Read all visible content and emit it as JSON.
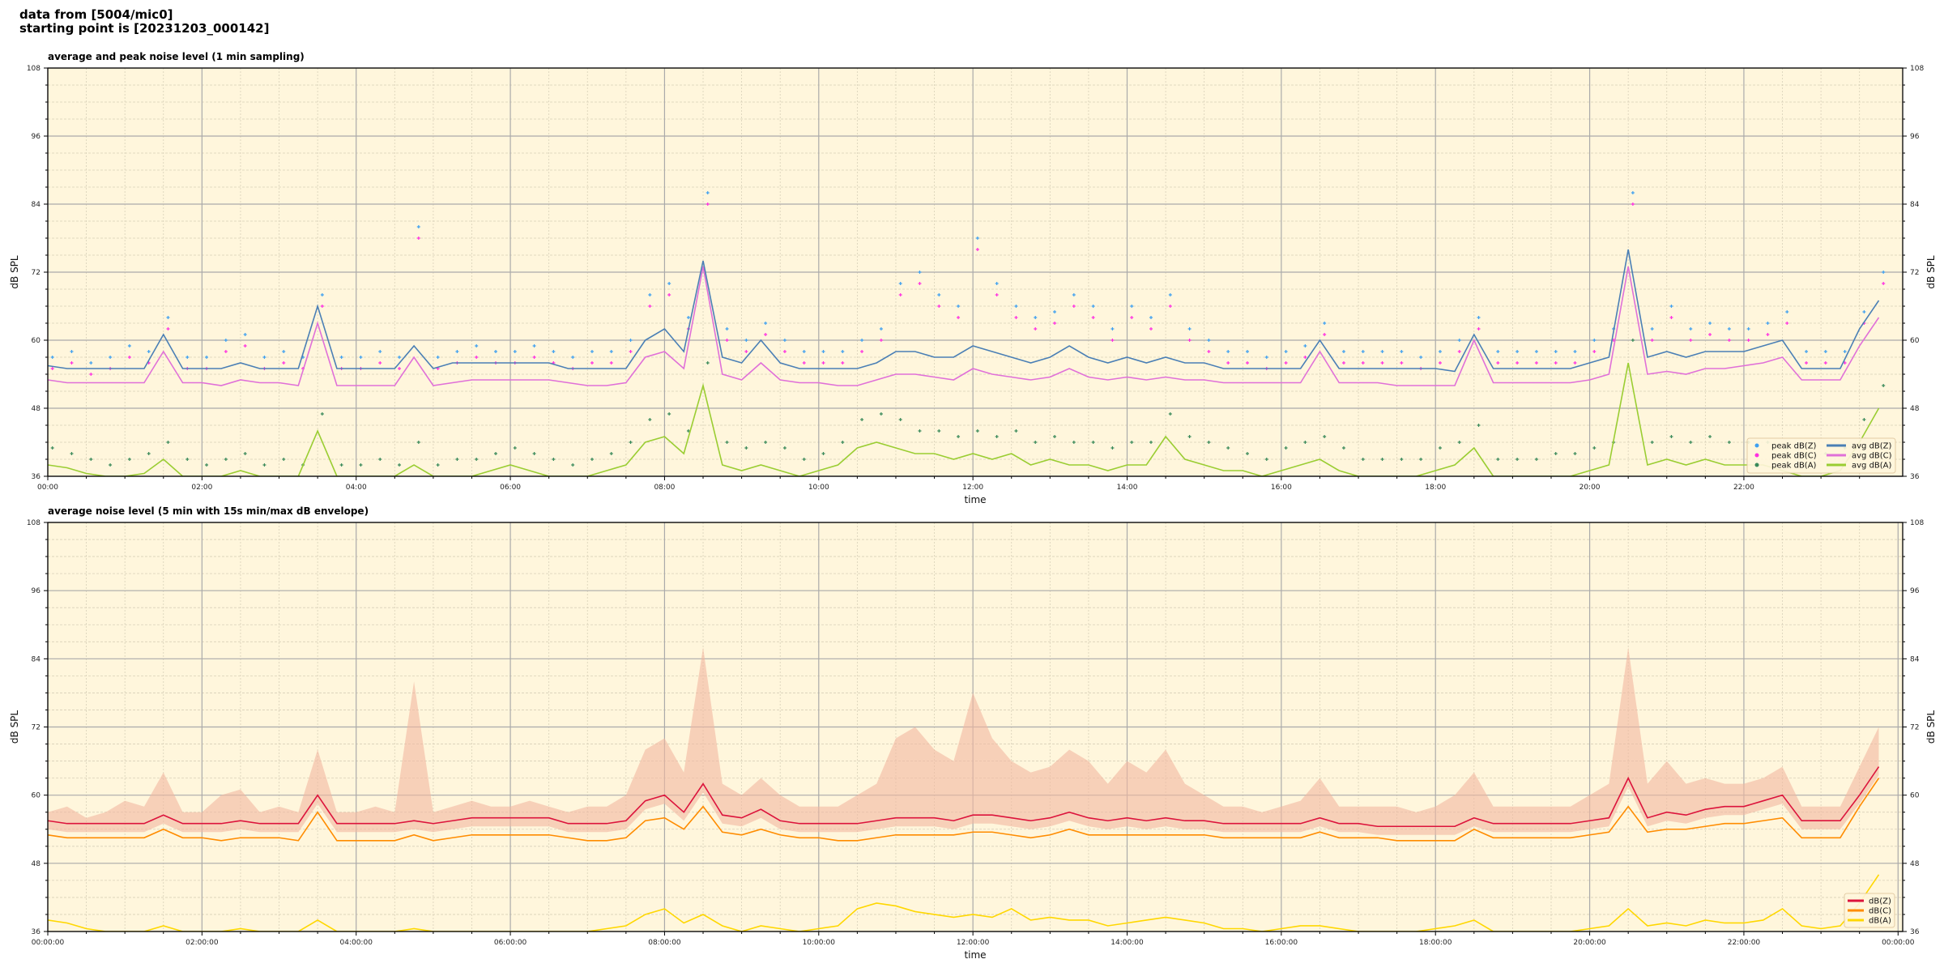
{
  "figure": {
    "suptitle_line1": "data from [5004/mic0]",
    "suptitle_line2": "starting point is [20231203_000142]"
  },
  "chart_data": [
    {
      "type": "line",
      "title": "average and peak noise level (1 min sampling)",
      "xlabel": "time",
      "ylabel": "dB SPL",
      "ylim": [
        36,
        108
      ],
      "yticks": [
        "36",
        "48",
        "60",
        "72",
        "84",
        "96",
        "108"
      ],
      "xticks": [
        "00:00",
        "02:00",
        "04:00",
        "06:00",
        "08:00",
        "10:00",
        "12:00",
        "14:00",
        "16:00",
        "18:00",
        "20:00",
        "22:00"
      ],
      "grid": true,
      "background": "#fff6dc",
      "legend_position": "lower-right",
      "x": [
        "00:00",
        "00:15",
        "00:30",
        "00:45",
        "01:00",
        "01:15",
        "01:30",
        "01:45",
        "02:00",
        "02:15",
        "02:30",
        "02:45",
        "03:00",
        "03:15",
        "03:30",
        "03:45",
        "04:00",
        "04:15",
        "04:30",
        "04:45",
        "05:00",
        "05:15",
        "05:30",
        "05:45",
        "06:00",
        "06:15",
        "06:30",
        "06:45",
        "07:00",
        "07:15",
        "07:30",
        "07:45",
        "08:00",
        "08:15",
        "08:30",
        "08:45",
        "09:00",
        "09:15",
        "09:30",
        "09:45",
        "10:00",
        "10:15",
        "10:30",
        "10:45",
        "11:00",
        "11:15",
        "11:30",
        "11:45",
        "12:00",
        "12:15",
        "12:30",
        "12:45",
        "13:00",
        "13:15",
        "13:30",
        "13:45",
        "14:00",
        "14:15",
        "14:30",
        "14:45",
        "15:00",
        "15:15",
        "15:30",
        "15:45",
        "16:00",
        "16:15",
        "16:30",
        "16:45",
        "17:00",
        "17:15",
        "17:30",
        "17:45",
        "18:00",
        "18:15",
        "18:30",
        "18:45",
        "19:00",
        "19:15",
        "19:30",
        "19:45",
        "20:00",
        "20:15",
        "20:30",
        "20:45",
        "21:00",
        "21:15",
        "21:30",
        "21:45",
        "22:00",
        "22:15",
        "22:30",
        "22:45",
        "23:00",
        "23:15",
        "23:30",
        "23:45"
      ],
      "scatter_series": [
        {
          "name": "peak dB(Z)",
          "color": "#3fa0f0",
          "values": [
            57,
            58,
            56,
            57,
            59,
            58,
            64,
            57,
            57,
            60,
            61,
            57,
            58,
            57,
            68,
            57,
            57,
            58,
            57,
            80,
            57,
            58,
            59,
            58,
            58,
            59,
            58,
            57,
            58,
            58,
            60,
            68,
            70,
            64,
            86,
            62,
            60,
            63,
            60,
            58,
            58,
            58,
            60,
            62,
            70,
            72,
            68,
            66,
            78,
            70,
            66,
            64,
            65,
            68,
            66,
            62,
            66,
            64,
            68,
            62,
            60,
            58,
            58,
            57,
            58,
            59,
            63,
            58,
            58,
            58,
            58,
            57,
            58,
            60,
            64,
            58,
            58,
            58,
            58,
            58,
            60,
            62,
            86,
            62,
            66,
            62,
            63,
            62,
            62,
            63,
            65,
            58,
            58,
            58,
            65,
            72
          ]
        },
        {
          "name": "peak dB(C)",
          "color": "#ff30e0",
          "values": [
            55,
            56,
            54,
            55,
            57,
            56,
            62,
            55,
            55,
            58,
            59,
            55,
            56,
            55,
            66,
            55,
            55,
            56,
            55,
            78,
            55,
            56,
            57,
            56,
            56,
            57,
            56,
            55,
            56,
            56,
            58,
            66,
            68,
            62,
            84,
            60,
            58,
            61,
            58,
            56,
            56,
            56,
            58,
            60,
            68,
            70,
            66,
            64,
            76,
            68,
            64,
            62,
            63,
            66,
            64,
            60,
            64,
            62,
            66,
            60,
            58,
            56,
            56,
            55,
            56,
            57,
            61,
            56,
            56,
            56,
            56,
            55,
            56,
            58,
            62,
            56,
            56,
            56,
            56,
            56,
            58,
            60,
            84,
            60,
            64,
            60,
            61,
            60,
            60,
            61,
            63,
            56,
            56,
            56,
            63,
            70
          ]
        },
        {
          "name": "peak dB(A)",
          "color": "#3a8a5a",
          "values": [
            41,
            40,
            39,
            38,
            39,
            40,
            42,
            39,
            38,
            39,
            40,
            38,
            39,
            38,
            47,
            38,
            38,
            39,
            38,
            42,
            38,
            39,
            39,
            40,
            41,
            40,
            39,
            38,
            39,
            40,
            42,
            46,
            47,
            44,
            56,
            42,
            41,
            42,
            41,
            39,
            40,
            42,
            46,
            47,
            46,
            44,
            44,
            43,
            44,
            43,
            44,
            42,
            43,
            42,
            42,
            41,
            42,
            42,
            47,
            43,
            42,
            41,
            40,
            39,
            41,
            42,
            43,
            41,
            39,
            39,
            39,
            39,
            41,
            42,
            45,
            39,
            39,
            39,
            40,
            40,
            41,
            42,
            60,
            42,
            43,
            42,
            43,
            42,
            42,
            42,
            41,
            40,
            40,
            41,
            46,
            52
          ]
        }
      ],
      "series": [
        {
          "name": "avg dB(Z)",
          "color": "#4a7fb5",
          "values": [
            55.5,
            55,
            55,
            55,
            55,
            55,
            61,
            55,
            55,
            55,
            56,
            55,
            55,
            55,
            66,
            55,
            55,
            55,
            55,
            59,
            55,
            56,
            56,
            56,
            56,
            56,
            56,
            55,
            55,
            55,
            55,
            60,
            62,
            58,
            74,
            57,
            56,
            60,
            56,
            55,
            55,
            55,
            55,
            56,
            58,
            58,
            57,
            57,
            59,
            58,
            57,
            56,
            57,
            59,
            57,
            56,
            57,
            56,
            57,
            56,
            56,
            55,
            55,
            55,
            55,
            55,
            60,
            55,
            55,
            55,
            55,
            55,
            55,
            54.5,
            61,
            55,
            55,
            55,
            55,
            55,
            56,
            57,
            76,
            57,
            58,
            57,
            58,
            58,
            58,
            59,
            60,
            55,
            55,
            55,
            62,
            67
          ]
        },
        {
          "name": "avg dB(C)",
          "color": "#e070d8",
          "values": [
            53,
            52.5,
            52.5,
            52.5,
            52.5,
            52.5,
            58,
            52.5,
            52.5,
            52,
            53,
            52.5,
            52.5,
            52,
            63,
            52,
            52,
            52,
            52,
            57,
            52,
            52.5,
            53,
            53,
            53,
            53,
            53,
            52.5,
            52,
            52,
            52.5,
            57,
            58,
            55,
            73,
            54,
            53,
            56,
            53,
            52.5,
            52.5,
            52,
            52,
            53,
            54,
            54,
            53.5,
            53,
            55,
            54,
            53.5,
            53,
            53.5,
            55,
            53.5,
            53,
            53.5,
            53,
            53.5,
            53,
            53,
            52.5,
            52.5,
            52.5,
            52.5,
            52.5,
            58,
            52.5,
            52.5,
            52.5,
            52,
            52,
            52,
            52,
            60,
            52.5,
            52.5,
            52.5,
            52.5,
            52.5,
            53,
            54,
            73,
            54,
            54.5,
            54,
            55,
            55,
            55.5,
            56,
            57,
            53,
            53,
            53,
            59,
            64
          ]
        },
        {
          "name": "avg dB(A)",
          "color": "#9acd32",
          "values": [
            38,
            37.5,
            36.5,
            36,
            36,
            36.5,
            39,
            36,
            36,
            36,
            37,
            36,
            36,
            36,
            44,
            36,
            36,
            36,
            36,
            38,
            36,
            36,
            36,
            37,
            38,
            37,
            36,
            36,
            36,
            37,
            38,
            42,
            43,
            40,
            52,
            38,
            37,
            38,
            37,
            36,
            37,
            38,
            41,
            42,
            41,
            40,
            40,
            39,
            40,
            39,
            40,
            38,
            39,
            38,
            38,
            37,
            38,
            38,
            43,
            39,
            38,
            37,
            37,
            36,
            37,
            38,
            39,
            37,
            36,
            36,
            36,
            36,
            37,
            38,
            41,
            36,
            36,
            36,
            36,
            36,
            37,
            38,
            56,
            38,
            39,
            38,
            39,
            38,
            38,
            38,
            37,
            36,
            36,
            37,
            42,
            48
          ]
        }
      ]
    },
    {
      "type": "line",
      "title": "average noise level (5 min with 15s min/max dB envelope)",
      "xlabel": "time",
      "ylabel": "dB SPL",
      "ylim": [
        36,
        108
      ],
      "yticks": [
        "36",
        "48",
        "60",
        "72",
        "84",
        "96",
        "108"
      ],
      "xticks": [
        "00:00:00",
        "02:00:00",
        "04:00:00",
        "06:00:00",
        "08:00:00",
        "10:00:00",
        "12:00:00",
        "14:00:00",
        "16:00:00",
        "18:00:00",
        "20:00:00",
        "22:00:00",
        "00:00:00"
      ],
      "grid": true,
      "background": "#fff6dc",
      "legend_position": "lower-right",
      "envelope_color": "#f2b8a0",
      "envelope_max": [
        57,
        58,
        56,
        57,
        59,
        58,
        64,
        57,
        57,
        60,
        61,
        57,
        58,
        57,
        68,
        57,
        57,
        58,
        57,
        80,
        57,
        58,
        59,
        58,
        58,
        59,
        58,
        57,
        58,
        58,
        60,
        68,
        70,
        64,
        86,
        62,
        60,
        63,
        60,
        58,
        58,
        58,
        60,
        62,
        70,
        72,
        68,
        66,
        78,
        70,
        66,
        64,
        65,
        68,
        66,
        62,
        66,
        64,
        68,
        62,
        60,
        58,
        58,
        57,
        58,
        59,
        63,
        58,
        58,
        58,
        58,
        57,
        58,
        60,
        64,
        58,
        58,
        58,
        58,
        58,
        60,
        62,
        86,
        62,
        66,
        62,
        63,
        62,
        62,
        63,
        65,
        58,
        58,
        58,
        65,
        72
      ],
      "series": [
        {
          "name": "dB(Z)",
          "color": "#dc143c",
          "values": [
            55.5,
            55,
            55,
            55,
            55,
            55,
            56.5,
            55,
            55,
            55,
            55.5,
            55,
            55,
            55,
            60,
            55,
            55,
            55,
            55,
            55.5,
            55,
            55.5,
            56,
            56,
            56,
            56,
            56,
            55,
            55,
            55,
            55.5,
            59,
            60,
            57,
            62,
            56.5,
            56,
            57.5,
            55.5,
            55,
            55,
            55,
            55,
            55.5,
            56,
            56,
            56,
            55.5,
            56.5,
            56.5,
            56,
            55.5,
            56,
            57,
            56,
            55.5,
            56,
            55.5,
            56,
            55.5,
            55.5,
            55,
            55,
            55,
            55,
            55,
            56,
            55,
            55,
            54.5,
            54.5,
            54.5,
            54.5,
            54.5,
            56,
            55,
            55,
            55,
            55,
            55,
            55.5,
            56,
            63,
            56,
            57,
            56.5,
            57.5,
            58,
            58,
            59,
            60,
            55.5,
            55.5,
            55.5,
            60,
            65
          ]
        },
        {
          "name": "dB(C)",
          "color": "#ff8c00",
          "values": [
            53,
            52.5,
            52.5,
            52.5,
            52.5,
            52.5,
            54,
            52.5,
            52.5,
            52,
            52.5,
            52.5,
            52.5,
            52,
            57,
            52,
            52,
            52,
            52,
            53,
            52,
            52.5,
            53,
            53,
            53,
            53,
            53,
            52.5,
            52,
            52,
            52.5,
            55.5,
            56,
            54,
            58,
            53.5,
            53,
            54,
            53,
            52.5,
            52.5,
            52,
            52,
            52.5,
            53,
            53,
            53,
            53,
            53.5,
            53.5,
            53,
            52.5,
            53,
            54,
            53,
            53,
            53,
            53,
            53,
            53,
            53,
            52.5,
            52.5,
            52.5,
            52.5,
            52.5,
            53.5,
            52.5,
            52.5,
            52.5,
            52,
            52,
            52,
            52,
            54,
            52.5,
            52.5,
            52.5,
            52.5,
            52.5,
            53,
            53.5,
            58,
            53.5,
            54,
            54,
            54.5,
            55,
            55,
            55.5,
            56,
            52.5,
            52.5,
            52.5,
            58,
            63
          ]
        },
        {
          "name": "dB(A)",
          "color": "#ffd700",
          "values": [
            38,
            37.5,
            36.5,
            36,
            36,
            36,
            37,
            36,
            36,
            36,
            36.5,
            36,
            36,
            36,
            38,
            36,
            36,
            36,
            36,
            36.5,
            36,
            36,
            36,
            36,
            36,
            36,
            36,
            36,
            36,
            36.5,
            37,
            39,
            40,
            37.5,
            39,
            37,
            36,
            37,
            36.5,
            36,
            36.5,
            37,
            40,
            41,
            40.5,
            39.5,
            39,
            38.5,
            39,
            38.5,
            40,
            38,
            38.5,
            38,
            38,
            37,
            37.5,
            38,
            38.5,
            38,
            37.5,
            36.5,
            36.5,
            36,
            36.5,
            37,
            37,
            36.5,
            36,
            36,
            36,
            36,
            36.5,
            37,
            38,
            36,
            36,
            36,
            36,
            36,
            36.5,
            37,
            40,
            37,
            37.5,
            37,
            38,
            37.5,
            37.5,
            38,
            40,
            37,
            36.5,
            37,
            41,
            46
          ]
        }
      ]
    }
  ]
}
